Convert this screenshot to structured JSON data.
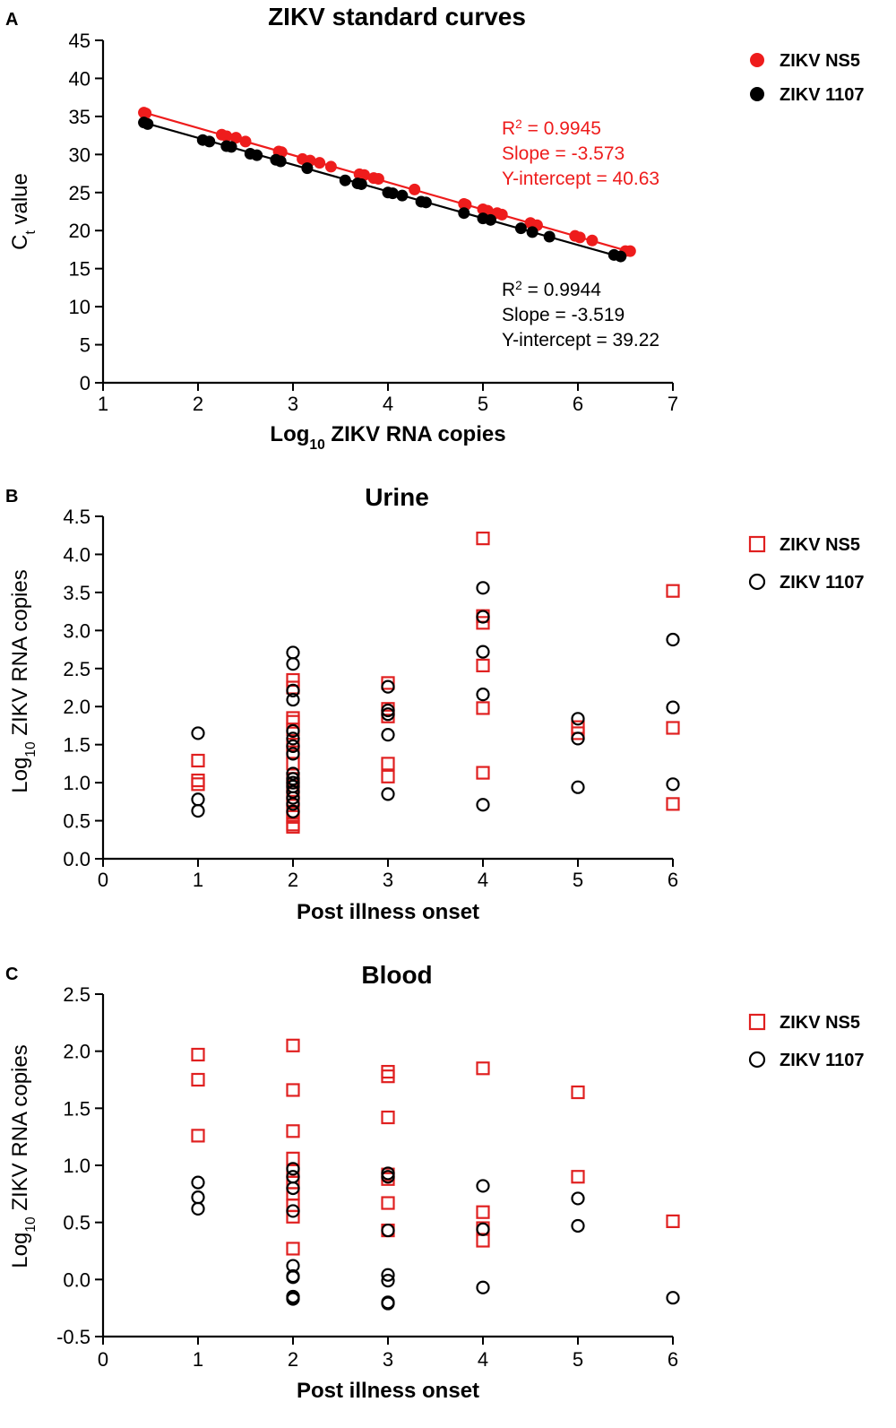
{
  "chart_data": [
    {
      "panel_letter": "A",
      "type": "scatter",
      "title": "ZIKV standard curves",
      "xlabel": {
        "main": "Log",
        "sub": "10",
        "rest": " ZIKV RNA copies"
      },
      "ylabel": {
        "main": "C",
        "sub": "t",
        "rest": " value"
      },
      "xlim": [
        1,
        7
      ],
      "ylim": [
        0,
        45
      ],
      "xticks": [
        "1",
        "2",
        "3",
        "4",
        "5",
        "6",
        "7"
      ],
      "yticks": [
        "0",
        "5",
        "10",
        "15",
        "20",
        "25",
        "30",
        "35",
        "40",
        "45"
      ],
      "series": [
        {
          "name": "ZIKV NS5",
          "color": "#ee1c1c",
          "marker": "filled-circle",
          "fit": {
            "slope": -3.573,
            "intercept": 40.63,
            "x_range": [
              1.43,
              6.55
            ]
          },
          "stats": {
            "r2_prefix": "R",
            "r2_sup": "2",
            "r2_value": " = 0.9945",
            "slope_text": "Slope = -3.573",
            "intercept_text": "Y-intercept = 40.63"
          },
          "x": [
            1.43,
            1.45,
            2.25,
            2.3,
            2.4,
            2.5,
            2.85,
            2.88,
            3.1,
            3.18,
            3.28,
            3.4,
            3.7,
            3.75,
            3.85,
            3.9,
            4.28,
            4.8,
            4.82,
            5.0,
            5.05,
            5.15,
            5.2,
            5.5,
            5.57,
            5.97,
            6.02,
            6.15,
            6.5,
            6.55
          ],
          "y": [
            35.5,
            35.4,
            32.6,
            32.4,
            32.2,
            31.7,
            30.4,
            30.3,
            29.4,
            29.2,
            28.9,
            28.4,
            27.4,
            27.3,
            26.9,
            26.8,
            25.4,
            23.5,
            23.4,
            22.8,
            22.6,
            22.3,
            22.1,
            21.0,
            20.7,
            19.3,
            19.1,
            18.7,
            17.3,
            17.3
          ]
        },
        {
          "name": "ZIKV 1107",
          "color": "#000000",
          "marker": "filled-circle",
          "fit": {
            "slope": -3.519,
            "intercept": 39.22,
            "x_range": [
              1.43,
              6.45
            ]
          },
          "stats": {
            "r2_prefix": "R",
            "r2_sup": "2",
            "r2_value": " = 0.9944",
            "slope_text": "Slope = -3.519",
            "intercept_text": "Y-intercept = 39.22"
          },
          "x": [
            1.43,
            1.47,
            2.05,
            2.12,
            2.3,
            2.35,
            2.55,
            2.62,
            2.82,
            2.87,
            3.15,
            3.55,
            3.68,
            3.72,
            4.0,
            4.05,
            4.15,
            4.35,
            4.4,
            4.8,
            5.0,
            5.08,
            5.4,
            5.52,
            5.7,
            6.38,
            6.45
          ],
          "y": [
            34.2,
            34.0,
            31.9,
            31.7,
            31.1,
            31.0,
            30.1,
            29.9,
            29.3,
            29.1,
            28.2,
            26.6,
            26.2,
            26.1,
            25.0,
            24.9,
            24.6,
            23.8,
            23.7,
            22.3,
            21.6,
            21.4,
            20.3,
            19.8,
            19.2,
            16.8,
            16.6
          ]
        }
      ]
    },
    {
      "panel_letter": "B",
      "type": "scatter",
      "title": "Urine",
      "xlabel": {
        "main": "Post illness onset",
        "sub": "",
        "rest": ""
      },
      "ylabel": {
        "main": "Log",
        "sub": "10",
        "rest": " ZIKV RNA copies"
      },
      "xlim": [
        0,
        6
      ],
      "ylim": [
        0,
        4.5
      ],
      "xticks": [
        "0",
        "1",
        "2",
        "3",
        "4",
        "5",
        "6"
      ],
      "yticks": [
        "0.0",
        "0.5",
        "1.0",
        "1.5",
        "2.0",
        "2.5",
        "3.0",
        "3.5",
        "4.0",
        "4.5"
      ],
      "series": [
        {
          "name": "ZIKV NS5",
          "color": "#e02020",
          "marker": "open-square",
          "x": [
            1,
            1,
            1,
            2,
            2,
            2,
            2,
            2,
            2,
            2,
            2,
            2,
            2,
            2,
            2,
            2,
            2,
            2,
            2,
            3,
            3,
            3,
            3,
            3,
            4,
            4,
            4,
            4,
            4,
            4,
            5,
            5,
            6,
            6,
            6
          ],
          "y": [
            1.29,
            1.03,
            0.98,
            2.35,
            2.25,
            1.85,
            1.8,
            1.7,
            1.5,
            1.4,
            1.25,
            1.05,
            0.95,
            0.85,
            0.75,
            0.62,
            0.55,
            0.45,
            0.42,
            2.31,
            1.97,
            1.87,
            1.25,
            1.08,
            4.21,
            3.19,
            3.1,
            2.54,
            1.98,
            1.13,
            1.73,
            1.65,
            3.52,
            1.72,
            0.72
          ]
        },
        {
          "name": "ZIKV 1107",
          "color": "#000000",
          "marker": "open-circle",
          "x": [
            1,
            1,
            1,
            2,
            2,
            2,
            2,
            2,
            2,
            2,
            2,
            2,
            2,
            2,
            2,
            2,
            2,
            2,
            2,
            3,
            3,
            3,
            3,
            3,
            4,
            4,
            4,
            4,
            4,
            5,
            5,
            5,
            6,
            6,
            6
          ],
          "y": [
            1.65,
            0.78,
            0.63,
            2.71,
            2.56,
            2.21,
            2.09,
            1.68,
            1.58,
            1.48,
            1.38,
            1.12,
            1.05,
            1.0,
            0.95,
            0.88,
            0.8,
            0.72,
            0.62,
            2.26,
            1.95,
            1.9,
            1.63,
            0.85,
            3.56,
            3.18,
            2.72,
            2.16,
            0.71,
            1.84,
            1.58,
            0.94,
            2.88,
            1.99,
            0.98
          ]
        }
      ]
    },
    {
      "panel_letter": "C",
      "type": "scatter",
      "title": "Blood",
      "xlabel": {
        "main": "Post illness onset",
        "sub": "",
        "rest": ""
      },
      "ylabel": {
        "main": "Log",
        "sub": "10",
        "rest": " ZIKV RNA copies"
      },
      "xlim": [
        0,
        6
      ],
      "ylim": [
        -0.5,
        2.5
      ],
      "xticks": [
        "0",
        "1",
        "2",
        "3",
        "4",
        "5",
        "6"
      ],
      "yticks": [
        "-0.5",
        "0.0",
        "0.5",
        "1.0",
        "1.5",
        "2.0",
        "2.5"
      ],
      "series": [
        {
          "name": "ZIKV NS5",
          "color": "#e02020",
          "marker": "open-square",
          "x": [
            1,
            1,
            1,
            2,
            2,
            2,
            2,
            2,
            2,
            2,
            2,
            2,
            2,
            3,
            3,
            3,
            3,
            3,
            3,
            3,
            4,
            4,
            4,
            4,
            5,
            5,
            6
          ],
          "y": [
            1.97,
            1.75,
            1.26,
            2.05,
            1.66,
            1.3,
            1.06,
            0.95,
            0.85,
            0.75,
            0.65,
            0.55,
            0.27,
            1.82,
            1.78,
            1.42,
            0.92,
            0.88,
            0.67,
            0.43,
            1.85,
            0.59,
            0.45,
            0.34,
            1.64,
            0.9,
            0.51
          ]
        },
        {
          "name": "ZIKV 1107",
          "color": "#000000",
          "marker": "open-circle",
          "x": [
            1,
            1,
            1,
            2,
            2,
            2,
            2,
            2,
            2,
            2,
            2,
            2,
            2,
            3,
            3,
            3,
            3,
            3,
            3,
            3,
            4,
            4,
            4,
            5,
            5,
            6
          ],
          "y": [
            0.85,
            0.72,
            0.62,
            0.97,
            0.9,
            0.8,
            0.6,
            0.12,
            0.03,
            0.02,
            -0.15,
            -0.16,
            -0.17,
            0.93,
            0.9,
            0.43,
            0.04,
            -0.01,
            -0.2,
            -0.21,
            0.82,
            0.44,
            -0.07,
            0.71,
            0.47,
            -0.16
          ]
        }
      ]
    }
  ]
}
